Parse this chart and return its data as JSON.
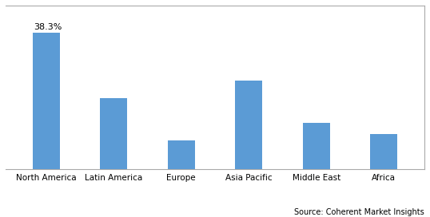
{
  "categories": [
    "North America",
    "Latin America",
    "Europe",
    "Asia Pacific",
    "Middle East",
    "Africa"
  ],
  "values": [
    38.3,
    20.0,
    8.0,
    25.0,
    13.0,
    10.0
  ],
  "bar_color": "#5b9bd5",
  "annotation_label": "38.3%",
  "annotation_index": 0,
  "source_text": "Source: Coherent Market Insights",
  "ylim": [
    0,
    46
  ],
  "background_color": "#ffffff",
  "grid_color": "#d0d0d0",
  "bar_width": 0.4,
  "tick_fontsize": 7.5,
  "annotation_fontsize": 8,
  "source_fontsize": 7
}
